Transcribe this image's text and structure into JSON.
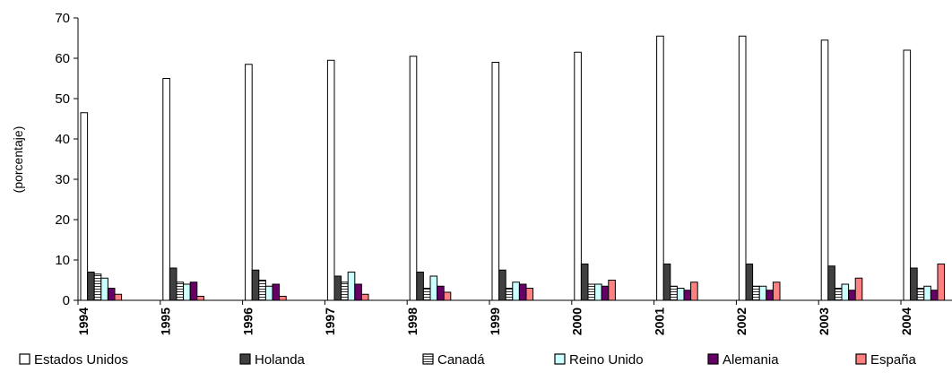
{
  "chart_data": {
    "type": "bar",
    "title": "",
    "xlabel": "",
    "ylabel": "(porcentaje)",
    "ylim": [
      0,
      70
    ],
    "yticks": [
      0,
      10,
      20,
      30,
      40,
      50,
      60,
      70
    ],
    "grid": false,
    "legend_position": "bottom",
    "categories": [
      "1994",
      "1995",
      "1996",
      "1997",
      "1998",
      "1999",
      "2000",
      "2001",
      "2002",
      "2003",
      "2004"
    ],
    "series": [
      {
        "name": "Estados Unidos",
        "color": "#ffffff",
        "pattern": "solid",
        "values": [
          46.5,
          55,
          58.5,
          59.5,
          60.5,
          59,
          61.5,
          65.5,
          65.5,
          64.5,
          62
        ]
      },
      {
        "name": "Holanda",
        "color": "#404040",
        "pattern": "solid",
        "values": [
          7,
          8,
          7.5,
          6,
          7,
          7.5,
          9,
          9,
          9,
          8.5,
          8
        ]
      },
      {
        "name": "Canadá",
        "color": "#ffffff",
        "pattern": "hatch",
        "values": [
          6.5,
          4.5,
          5,
          4.5,
          3,
          3,
          4,
          3.5,
          3.5,
          3,
          3
        ]
      },
      {
        "name": "Reino Unido",
        "color": "#ccffff",
        "pattern": "solid",
        "values": [
          5.5,
          4,
          3.5,
          7,
          6,
          4.5,
          4,
          3,
          3.5,
          4,
          3.5
        ]
      },
      {
        "name": "Alemania",
        "color": "#660066",
        "pattern": "solid",
        "values": [
          3,
          4.5,
          4,
          4,
          3.5,
          4,
          3.5,
          2.5,
          2.5,
          2.5,
          2.5
        ]
      },
      {
        "name": "España",
        "color": "#ff8080",
        "pattern": "solid",
        "values": [
          1.5,
          1,
          1,
          1.5,
          2,
          3,
          5,
          4.5,
          4.5,
          5.5,
          9
        ]
      }
    ]
  }
}
